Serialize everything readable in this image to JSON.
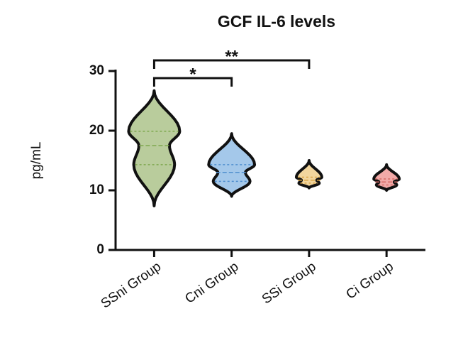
{
  "chart_data": {
    "type": "violin",
    "title": "GCF IL-6 levels",
    "y_label": "pg/mL",
    "categories": [
      "SSni Group",
      "Cni Group",
      "SSi Group",
      "Ci Group"
    ],
    "series": [
      {
        "name": "SSni Group",
        "color": "#b9cc9c",
        "line_color": "#7fa84f",
        "min": 7.4,
        "q1": 14.3,
        "median": 17.5,
        "q3": 19.9,
        "max": 26.7
      },
      {
        "name": "Cni Group",
        "color": "#a4c8ea",
        "line_color": "#4f8fcf",
        "min": 9.0,
        "q1": 11.5,
        "median": 13.0,
        "q3": 14.3,
        "max": 19.5
      },
      {
        "name": "SSi Group",
        "color": "#f2d69e",
        "line_color": "#d9a443",
        "min": 10.4,
        "q1": 11.2,
        "median": 11.7,
        "q3": 12.2,
        "max": 15.0
      },
      {
        "name": "Ci Group",
        "color": "#f2aaa8",
        "line_color": "#d46a66",
        "min": 10.0,
        "q1": 10.9,
        "median": 11.4,
        "q3": 11.9,
        "max": 14.3
      }
    ],
    "ylim": [
      0,
      30
    ],
    "yticks": [
      0,
      10,
      20,
      30
    ],
    "annotations": [
      {
        "text": "*",
        "groups": [
          "SSni Group",
          "Cni Group"
        ]
      },
      {
        "text": "**",
        "groups": [
          "SSni Group",
          "SSi Group"
        ]
      }
    ]
  }
}
